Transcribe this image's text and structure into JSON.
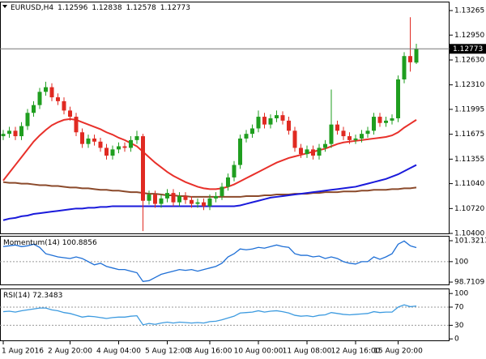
{
  "chart_data": [
    {
      "type": "candlestick",
      "title": "EURUSD,H4",
      "categories": [
        "1 Aug 2016",
        null,
        null,
        null,
        null,
        null,
        null,
        null,
        null,
        null,
        null,
        "2 Aug 20:00",
        null,
        null,
        null,
        null,
        null,
        null,
        null,
        "4 Aug 04:00",
        null,
        null,
        null,
        null,
        null,
        null,
        null,
        "5 Aug 12:00",
        null,
        null,
        null,
        null,
        null,
        null,
        "8 Aug 16:00",
        null,
        null,
        null,
        null,
        null,
        null,
        null,
        "10 Aug 00:00",
        null,
        null,
        null,
        null,
        null,
        null,
        null,
        "11 Aug 08:00",
        null,
        null,
        null,
        null,
        null,
        null,
        null,
        "12 Aug 16:00",
        null,
        null,
        null,
        null,
        null,
        null,
        "15 Aug 20:00",
        null,
        null,
        null
      ],
      "open": [
        1.1165,
        1.1168,
        1.1172,
        1.1165,
        1.1178,
        1.1195,
        1.1205,
        1.1222,
        1.1228,
        1.1215,
        1.121,
        1.1198,
        1.119,
        1.117,
        1.1155,
        1.1162,
        1.1158,
        1.115,
        1.114,
        1.1148,
        1.1152,
        1.115,
        1.116,
        1.1165,
        1.1082,
        1.109,
        1.1078,
        1.1085,
        1.1092,
        1.108,
        1.1088,
        1.1083,
        1.1078,
        1.108,
        1.1075,
        1.1085,
        1.1088,
        1.11,
        1.1112,
        1.1128,
        1.1162,
        1.1168,
        1.1175,
        1.119,
        1.118,
        1.1188,
        1.1192,
        1.1185,
        1.1172,
        1.115,
        1.1142,
        1.1148,
        1.114,
        1.115,
        1.1155,
        1.118,
        1.1172,
        1.1165,
        1.116,
        1.1162,
        1.1168,
        1.1172,
        1.119,
        1.1182,
        1.1185,
        1.1188,
        1.1238,
        1.1268,
        1.12596
      ],
      "high": [
        1.1173,
        1.1177,
        1.1177,
        1.1183,
        1.12,
        1.121,
        1.1227,
        1.1235,
        1.1233,
        1.122,
        1.1215,
        1.1203,
        1.1195,
        1.1175,
        1.1167,
        1.1167,
        1.1163,
        1.1155,
        1.1153,
        1.1157,
        1.1157,
        1.1165,
        1.1172,
        1.1168,
        1.1095,
        1.1095,
        1.109,
        1.1097,
        1.1097,
        1.1093,
        1.1093,
        1.1088,
        1.1085,
        1.1085,
        1.109,
        1.1093,
        1.1105,
        1.1117,
        1.1133,
        1.1167,
        1.1173,
        1.118,
        1.1198,
        1.1195,
        1.1193,
        1.1198,
        1.1197,
        1.119,
        1.1177,
        1.1155,
        1.1153,
        1.1153,
        1.1155,
        1.116,
        1.1225,
        1.1185,
        1.1177,
        1.117,
        1.1167,
        1.1173,
        1.1177,
        1.1195,
        1.1195,
        1.119,
        1.1193,
        1.1243,
        1.1273,
        1.1318,
        1.12838
      ],
      "low": [
        1.116,
        1.1163,
        1.116,
        1.116,
        1.1173,
        1.119,
        1.12,
        1.1217,
        1.121,
        1.1205,
        1.1193,
        1.1185,
        1.1165,
        1.115,
        1.115,
        1.1153,
        1.1145,
        1.1135,
        1.1135,
        1.1143,
        1.1145,
        1.1145,
        1.1155,
        1.1043,
        1.1077,
        1.1073,
        1.1073,
        1.108,
        1.1075,
        1.1075,
        1.1078,
        1.1073,
        1.1073,
        1.107,
        1.107,
        1.108,
        1.1083,
        1.1095,
        1.1107,
        1.1123,
        1.1157,
        1.1163,
        1.117,
        1.1175,
        1.1175,
        1.1183,
        1.118,
        1.1167,
        1.1145,
        1.1137,
        1.1137,
        1.1135,
        1.1135,
        1.1145,
        1.115,
        1.1167,
        1.116,
        1.1155,
        1.1155,
        1.1157,
        1.1163,
        1.1167,
        1.1177,
        1.1177,
        1.118,
        1.1183,
        1.1233,
        1.1248,
        1.12578
      ],
      "close": [
        1.1168,
        1.1172,
        1.1165,
        1.1178,
        1.1195,
        1.1205,
        1.1222,
        1.1228,
        1.1215,
        1.121,
        1.1198,
        1.119,
        1.117,
        1.1155,
        1.1162,
        1.1158,
        1.115,
        1.114,
        1.1148,
        1.1152,
        1.115,
        1.116,
        1.1165,
        1.1082,
        1.109,
        1.1078,
        1.1085,
        1.1092,
        1.108,
        1.1088,
        1.1083,
        1.1078,
        1.108,
        1.1075,
        1.1085,
        1.1088,
        1.11,
        1.1112,
        1.1128,
        1.1162,
        1.1168,
        1.1175,
        1.119,
        1.118,
        1.1188,
        1.1192,
        1.1185,
        1.1172,
        1.115,
        1.1142,
        1.1148,
        1.114,
        1.115,
        1.1155,
        1.118,
        1.1172,
        1.1165,
        1.116,
        1.1162,
        1.1168,
        1.1172,
        1.119,
        1.1182,
        1.1185,
        1.1188,
        1.1238,
        1.1268,
        1.126,
        1.12773
      ],
      "up_color": "#1f9e1f",
      "down_color": "#e02a22",
      "overlays": [
        {
          "color": "#e8302a",
          "values": [
            1.1108,
            1.1118,
            1.1128,
            1.1138,
            1.1148,
            1.1158,
            1.1166,
            1.1173,
            1.1179,
            1.1183,
            1.1186,
            1.1187,
            1.1186,
            1.1183,
            1.118,
            1.1177,
            1.1174,
            1.117,
            1.1167,
            1.1163,
            1.116,
            1.1156,
            1.1152,
            1.1145,
            1.1138,
            1.1131,
            1.1125,
            1.1119,
            1.1114,
            1.111,
            1.1106,
            1.1103,
            1.11,
            1.1098,
            1.1097,
            1.1097,
            1.1098,
            1.11,
            1.1103,
            1.1107,
            1.1111,
            1.1115,
            1.1119,
            1.1123,
            1.1127,
            1.1131,
            1.1134,
            1.1137,
            1.1139,
            1.1141,
            1.1143,
            1.1145,
            1.1147,
            1.1149,
            1.1152,
            1.1155,
            1.1157,
            1.1158,
            1.1159,
            1.116,
            1.1161,
            1.1162,
            1.1163,
            1.1164,
            1.1166,
            1.117,
            1.1176,
            1.1181,
            1.1186
          ]
        },
        {
          "color": "#8b4a2b",
          "values": [
            1.1106,
            1.1105,
            1.1105,
            1.1104,
            1.1104,
            1.1103,
            1.1102,
            1.1102,
            1.1101,
            1.1101,
            1.11,
            1.1099,
            1.1099,
            1.1098,
            1.1098,
            1.1097,
            1.1096,
            1.1096,
            1.1095,
            1.1095,
            1.1094,
            1.1093,
            1.1093,
            1.1092,
            1.1091,
            1.1091,
            1.109,
            1.1089,
            1.1089,
            1.1088,
            1.1088,
            1.1087,
            1.1087,
            1.1087,
            1.1087,
            1.1087,
            1.1087,
            1.1087,
            1.1087,
            1.1087,
            1.1088,
            1.1088,
            1.1088,
            1.1089,
            1.1089,
            1.109,
            1.109,
            1.109,
            1.1091,
            1.1091,
            1.1091,
            1.1092,
            1.1092,
            1.1093,
            1.1093,
            1.1093,
            1.1094,
            1.1094,
            1.1094,
            1.1095,
            1.1095,
            1.1096,
            1.1096,
            1.1096,
            1.1097,
            1.1097,
            1.1098,
            1.1098,
            1.1099
          ]
        },
        {
          "color": "#1a1adb",
          "values": [
            1.1057,
            1.1059,
            1.106,
            1.1062,
            1.1063,
            1.1065,
            1.1066,
            1.1067,
            1.1068,
            1.1069,
            1.107,
            1.1071,
            1.1072,
            1.1072,
            1.1073,
            1.1073,
            1.1074,
            1.1074,
            1.1075,
            1.1075,
            1.1075,
            1.1075,
            1.1075,
            1.1075,
            1.1075,
            1.1075,
            1.1075,
            1.1075,
            1.1075,
            1.1075,
            1.1075,
            1.1075,
            1.1075,
            1.1075,
            1.1075,
            1.1075,
            1.1075,
            1.1075,
            1.1075,
            1.1076,
            1.1078,
            1.108,
            1.1082,
            1.1084,
            1.1086,
            1.1087,
            1.1088,
            1.1089,
            1.109,
            1.1091,
            1.1092,
            1.1093,
            1.1094,
            1.1095,
            1.1096,
            1.1097,
            1.1098,
            1.1099,
            1.11,
            1.1102,
            1.1104,
            1.1106,
            1.1108,
            1.111,
            1.1113,
            1.1116,
            1.112,
            1.1124,
            1.1128
          ]
        }
      ],
      "ylim": [
        1.1039,
        1.1338
      ],
      "yticks": [
        1.13265,
        {
          "value": 1.1295,
          "label": "1.12950"
        },
        {
          "value": 1.1263,
          "label": "1.12630"
        },
        {
          "value": 1.1231,
          "label": "1.12310"
        },
        1.11995,
        1.11675,
        1.11355,
        {
          "value": 1.1104,
          "label": "1.11040"
        },
        {
          "value": 1.1072,
          "label": "1.10720"
        },
        {
          "value": 1.104,
          "label": "1.10400"
        }
      ]
    },
    {
      "type": "line",
      "series": [
        {
          "name": "Momentum(14)",
          "color": "#1e6fd6",
          "values": [
            100.95,
            101.0,
            101.05,
            100.95,
            101.0,
            101.1,
            100.9,
            100.5,
            100.4,
            100.3,
            100.25,
            100.2,
            100.3,
            100.2,
            100.0,
            99.8,
            99.9,
            99.7,
            99.6,
            99.5,
            99.5,
            99.4,
            99.3,
            98.75,
            98.8,
            99.0,
            99.2,
            99.3,
            99.4,
            99.5,
            99.45,
            99.5,
            99.4,
            99.5,
            99.6,
            99.7,
            99.9,
            100.3,
            100.5,
            100.8,
            100.75,
            100.8,
            100.9,
            100.85,
            100.95,
            101.05,
            100.95,
            100.9,
            100.5,
            100.4,
            100.4,
            100.3,
            100.35,
            100.2,
            100.3,
            100.2,
            100.0,
            99.9,
            99.85,
            100.0,
            100.0,
            100.3,
            100.15,
            100.3,
            100.5,
            101.1,
            101.3,
            101.0,
            100.8856
          ]
        }
      ],
      "ylim": [
        98.51,
        101.63
      ],
      "yticks": [
        101.3213,
        100,
        98.7109
      ],
      "levels": [
        100
      ]
    },
    {
      "type": "line",
      "series": [
        {
          "name": "RSI(14)",
          "color": "#3d9be0",
          "values": [
            60,
            61,
            59,
            62,
            64,
            66,
            68,
            68,
            64,
            62,
            58,
            56,
            52,
            48,
            50,
            49,
            47,
            45,
            47,
            48,
            48,
            50,
            51,
            31,
            34,
            32,
            35,
            37,
            35,
            37,
            36,
            35,
            36,
            35,
            38,
            39,
            42,
            46,
            50,
            57,
            58,
            59,
            62,
            59,
            61,
            62,
            60,
            57,
            52,
            50,
            51,
            49,
            52,
            53,
            58,
            56,
            54,
            53,
            54,
            55,
            56,
            60,
            58,
            59,
            59,
            70,
            75,
            71,
            72.3483
          ]
        }
      ],
      "ylim": [
        -5,
        111
      ],
      "yticks": [
        100,
        70,
        30,
        0
      ],
      "levels": [
        70,
        30
      ]
    }
  ]
}
